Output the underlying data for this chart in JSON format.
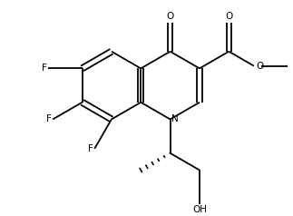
{
  "bg_color": "#ffffff",
  "line_color": "#000000",
  "line_width": 1.3,
  "font_size": 7.5,
  "figsize": [
    3.23,
    2.38
  ],
  "dpi": 100,
  "xlim": [
    0,
    10
  ],
  "ylim": [
    0,
    7.4
  ]
}
